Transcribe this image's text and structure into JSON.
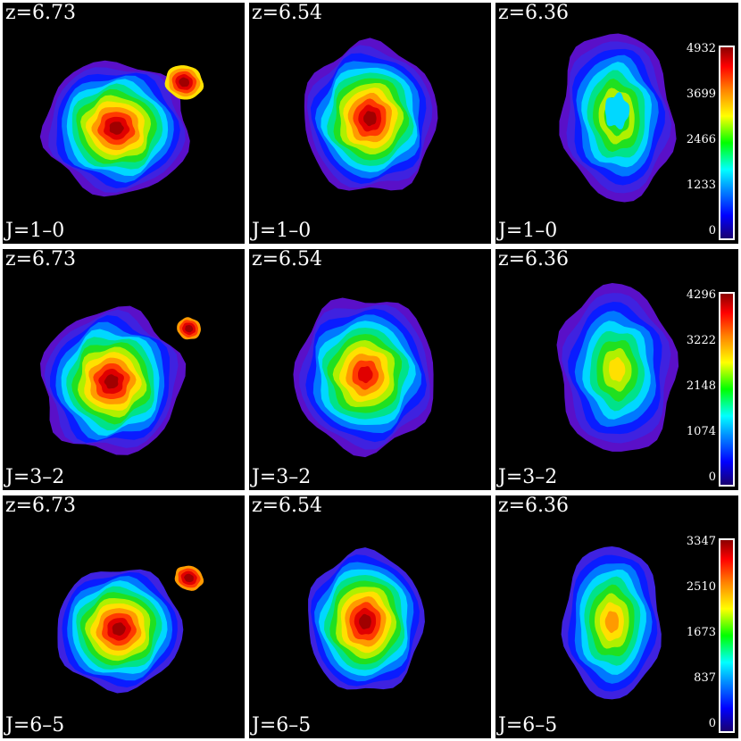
{
  "panels": [
    {
      "z": "z=6.73",
      "line": "J=1–0"
    },
    {
      "z": "z=6.54",
      "line": "J=1–0"
    },
    {
      "z": "z=6.36",
      "line": "J=1–0"
    },
    {
      "z": "z=6.73",
      "line": "J=3–2"
    },
    {
      "z": "z=6.54",
      "line": "J=3–2"
    },
    {
      "z": "z=6.36",
      "line": "J=3–2"
    },
    {
      "z": "z=6.73",
      "line": "J=6–5"
    },
    {
      "z": "z=6.54",
      "line": "J=6–5"
    },
    {
      "z": "z=6.36",
      "line": "J=6–5"
    }
  ],
  "colorbars": [
    {
      "ticks": [
        "4932",
        "3699",
        "2466",
        "1233",
        "0"
      ]
    },
    {
      "ticks": [
        "4296",
        "3222",
        "2148",
        "1074",
        "0"
      ]
    },
    {
      "ticks": [
        "3347",
        "2510",
        "1673",
        "837",
        "0"
      ]
    }
  ],
  "palette": [
    "#5a10c8",
    "#3f22e0",
    "#0a1cff",
    "#0078ff",
    "#00d8ff",
    "#00e28a",
    "#20e020",
    "#b0f000",
    "#ffe000",
    "#ff9a00",
    "#ff3a00",
    "#e00000",
    "#a00000"
  ]
}
